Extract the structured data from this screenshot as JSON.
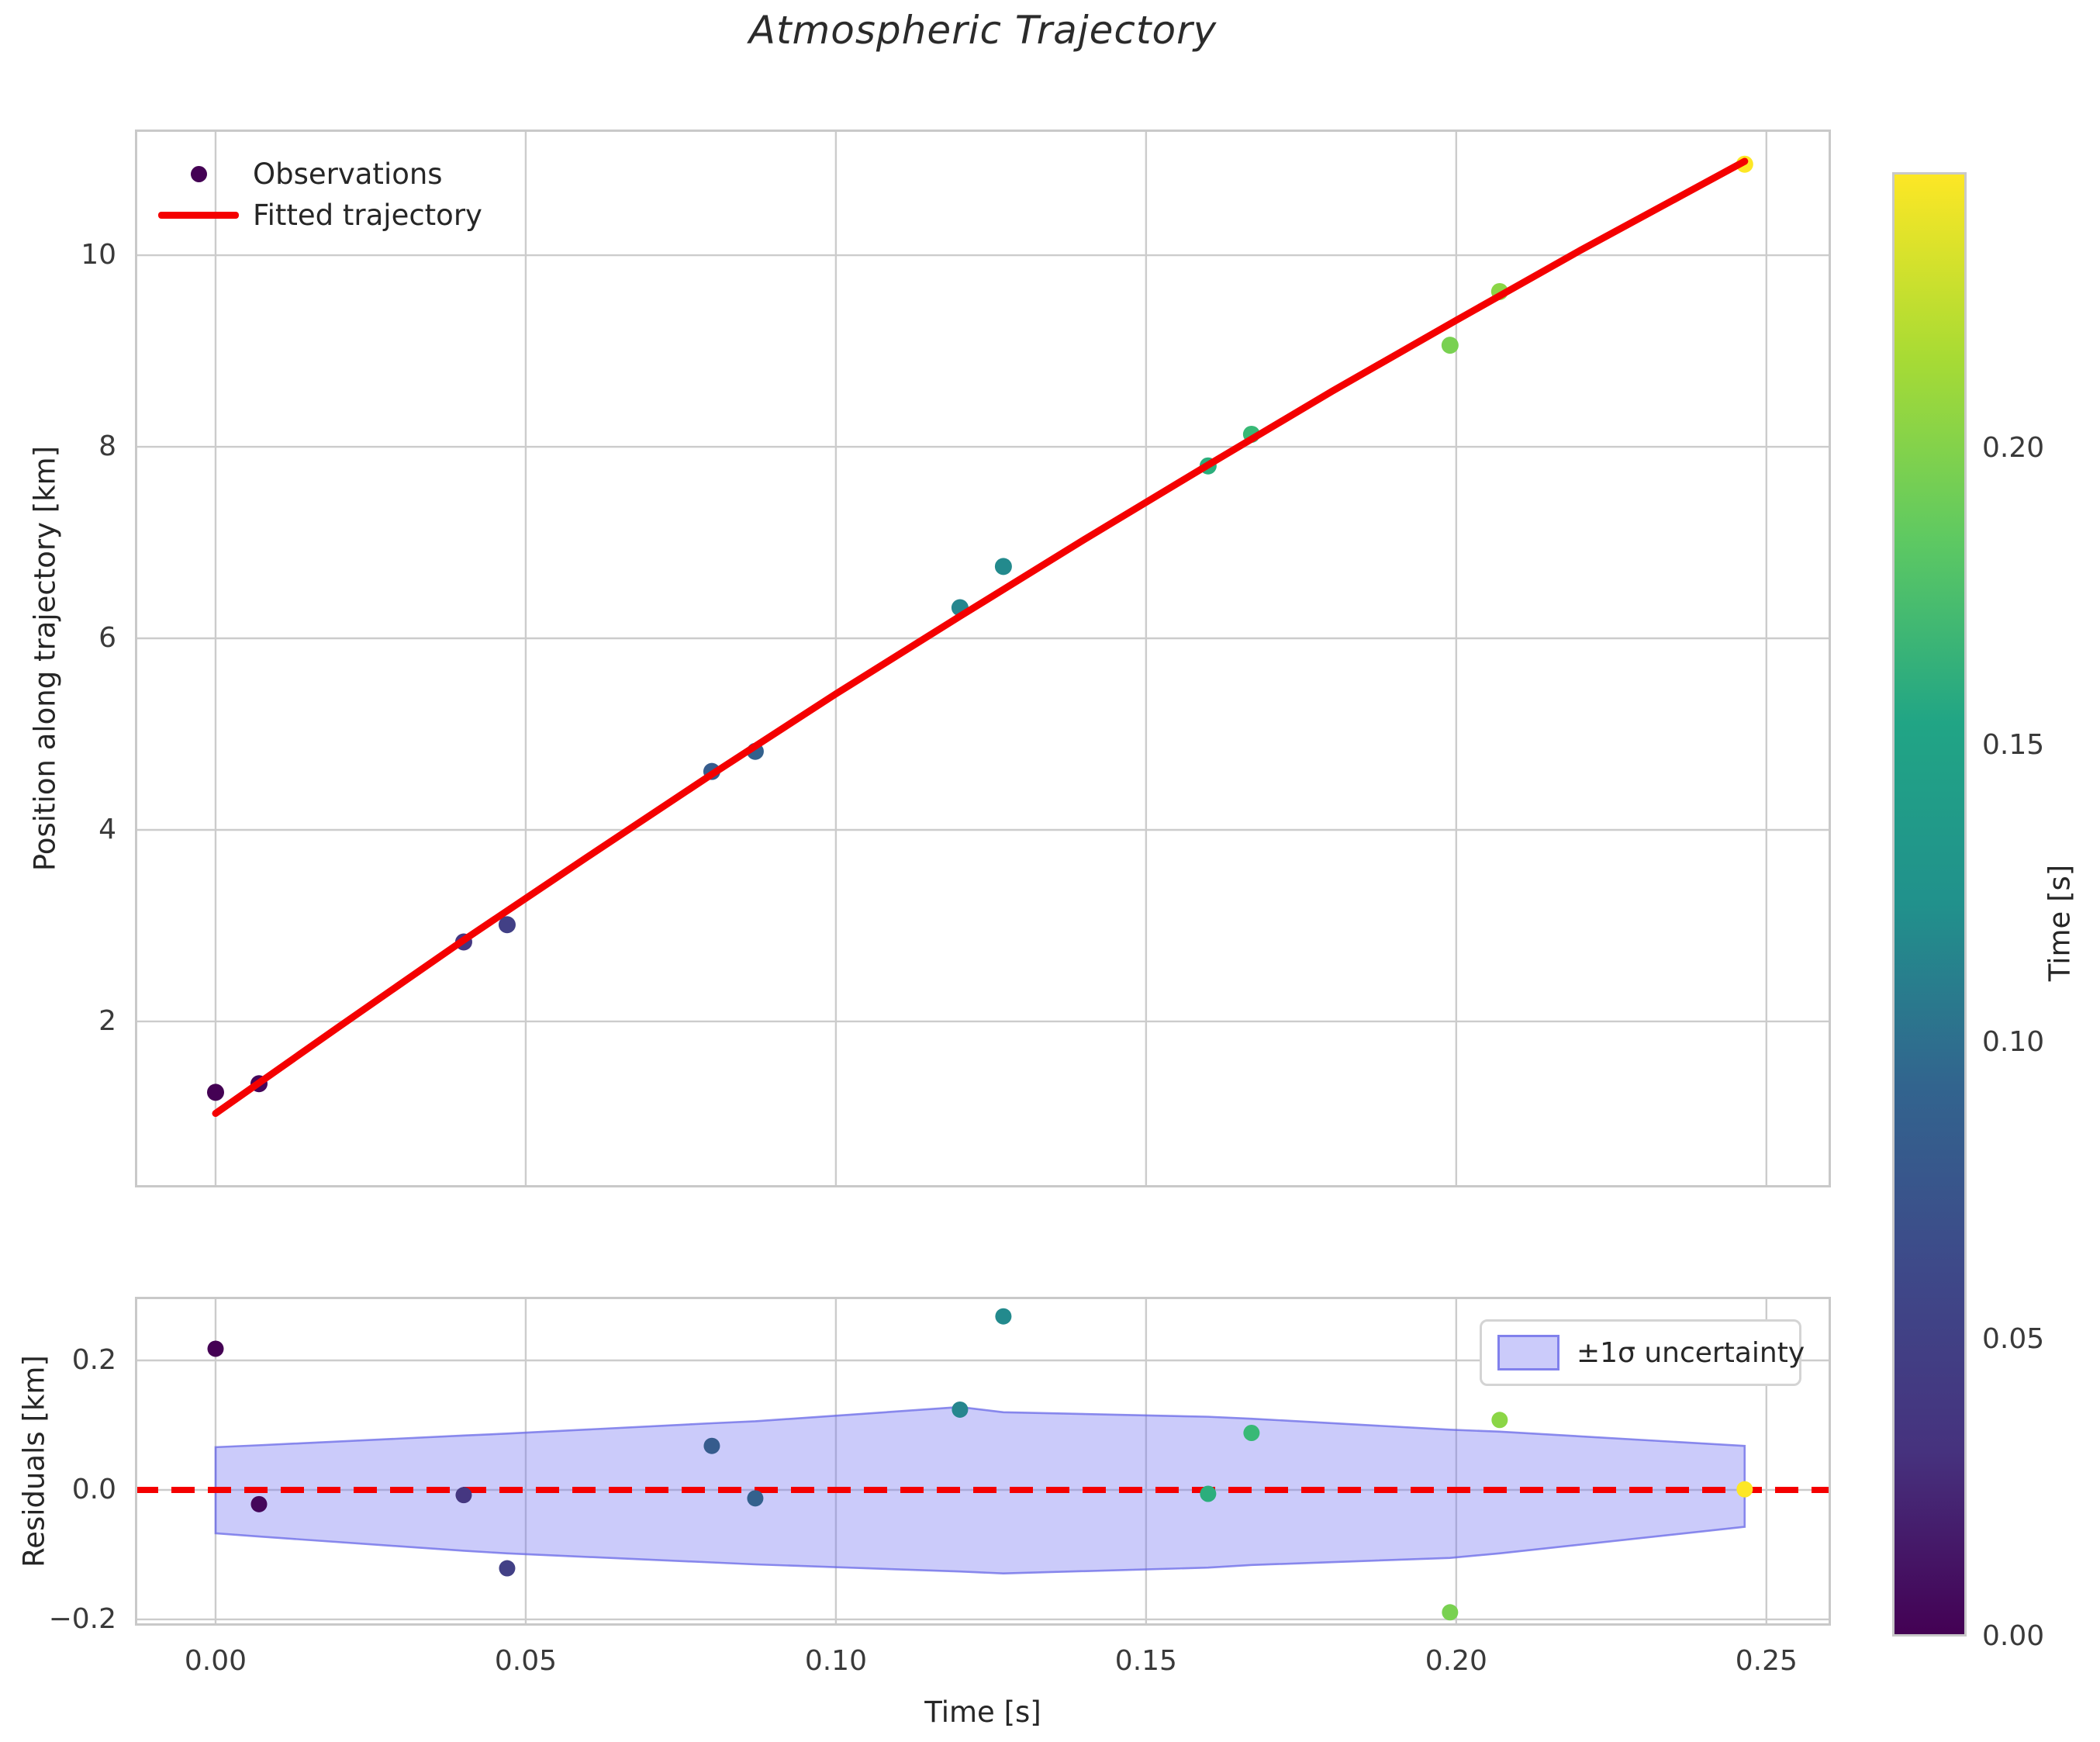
{
  "title": "Atmospheric Trajectory",
  "chart_data": [
    {
      "id": "trajectory",
      "type": "scatter",
      "title": "Atmospheric Trajectory",
      "xlabel": "Time [s]",
      "ylabel": "Position along trajectory [km]",
      "xlim": [
        -0.013,
        0.2604
      ],
      "ylim": [
        0.267,
        11.312
      ],
      "grid": true,
      "x_ticks": {
        "values": [
          0.0,
          0.05,
          0.1,
          0.15,
          0.2,
          0.25
        ],
        "labels": [
          "0.00",
          "0.05",
          "0.10",
          "0.15",
          "0.20",
          "0.25"
        ]
      },
      "y_ticks": {
        "values": [
          2,
          4,
          6,
          8,
          10
        ],
        "labels": [
          "2",
          "4",
          "6",
          "8",
          "10"
        ]
      },
      "legend": {
        "position": "upper left",
        "entries": [
          {
            "label": "Observations",
            "type": "point",
            "color": "#440154"
          },
          {
            "label": "Fitted trajectory",
            "type": "line",
            "color": "#f40000"
          }
        ]
      },
      "observations": {
        "name": "Observations",
        "colormap": "viridis",
        "color_by": "Time [s]",
        "marker_radius": 11,
        "points": [
          [
            0.0,
            1.26,
            "#440154"
          ],
          [
            0.007,
            1.35,
            "#45065a"
          ],
          [
            0.04,
            2.83,
            "#453781"
          ],
          [
            0.047,
            3.01,
            "#424086"
          ],
          [
            0.08,
            4.61,
            "#365c8d"
          ],
          [
            0.087,
            4.82,
            "#33618d"
          ],
          [
            0.12,
            6.32,
            "#26868e"
          ],
          [
            0.127,
            6.75,
            "#238a8d"
          ],
          [
            0.16,
            7.8,
            "#2bae7c"
          ],
          [
            0.167,
            8.13,
            "#38b976"
          ],
          [
            0.199,
            9.06,
            "#79d151"
          ],
          [
            0.207,
            9.62,
            "#8bd646"
          ],
          [
            0.2465,
            10.95,
            "#fde725"
          ]
        ]
      },
      "fitted_trajectory": {
        "name": "Fitted trajectory",
        "color": "#f40000",
        "width": 9,
        "x": [
          0,
          0.02,
          0.04,
          0.06,
          0.08,
          0.1,
          0.12,
          0.14,
          0.16,
          0.18,
          0.2,
          0.22,
          0.2465
        ],
        "y": [
          1.04,
          1.95,
          2.85,
          3.72,
          4.58,
          5.42,
          6.23,
          7.03,
          7.81,
          8.58,
          9.32,
          10.05,
          10.98
        ]
      }
    },
    {
      "id": "residuals",
      "type": "scatter",
      "xlabel": "Time [s]",
      "ylabel": "Residuals [km]",
      "xlim": [
        -0.013,
        0.2604
      ],
      "ylim": [
        -0.2096,
        0.2982
      ],
      "grid": true,
      "x_ticks": {
        "values": [
          0.0,
          0.05,
          0.1,
          0.15,
          0.2,
          0.25
        ],
        "labels": [
          "0.00",
          "0.05",
          "0.10",
          "0.15",
          "0.20",
          "0.25"
        ]
      },
      "y_ticks": {
        "values": [
          -0.2,
          0.0,
          0.2
        ],
        "labels": [
          "−0.2",
          "0.0",
          "0.2"
        ]
      },
      "zero_line": {
        "color": "#f40000",
        "style": "dashed",
        "width": 8,
        "dash": "30 17",
        "y": 0.0
      },
      "band": {
        "label": "±1σ uncertainty",
        "fill": "#6b6bf0",
        "fill_opacity": 0.35,
        "edge": "#6464e6",
        "edge_opacity": 0.72,
        "points": [
          [
            0.0,
            -0.067,
            0.066
          ],
          [
            0.007,
            -0.072,
            0.069
          ],
          [
            0.04,
            -0.094,
            0.084
          ],
          [
            0.047,
            -0.098,
            0.087
          ],
          [
            0.08,
            -0.112,
            0.103
          ],
          [
            0.087,
            -0.115,
            0.106
          ],
          [
            0.12,
            -0.126,
            0.128
          ],
          [
            0.127,
            -0.129,
            0.12
          ],
          [
            0.16,
            -0.12,
            0.113
          ],
          [
            0.167,
            -0.116,
            0.11
          ],
          [
            0.199,
            -0.105,
            0.093
          ],
          [
            0.207,
            -0.098,
            0.09
          ],
          [
            0.2465,
            -0.057,
            0.068
          ]
        ]
      },
      "points": [
        [
          0.0,
          0.218,
          "#440154"
        ],
        [
          0.007,
          -0.022,
          "#45065a"
        ],
        [
          0.04,
          -0.008,
          "#453781"
        ],
        [
          0.047,
          -0.121,
          "#424086"
        ],
        [
          0.08,
          0.068,
          "#365c8d"
        ],
        [
          0.087,
          -0.013,
          "#33618d"
        ],
        [
          0.12,
          0.124,
          "#26868e"
        ],
        [
          0.127,
          0.268,
          "#238a8d"
        ],
        [
          0.16,
          -0.006,
          "#2bae7c"
        ],
        [
          0.167,
          0.088,
          "#38b976"
        ],
        [
          0.199,
          -0.189,
          "#79d151"
        ],
        [
          0.207,
          0.108,
          "#8bd646"
        ],
        [
          0.2465,
          0.001,
          "#fde725"
        ]
      ],
      "legend": {
        "position": "upper right",
        "entries": [
          {
            "label": "±1σ uncertainty",
            "type": "patch"
          }
        ]
      }
    }
  ],
  "colorbar": {
    "label": "Time [s]",
    "vmin": 0.0,
    "vmax": 0.2465,
    "ticks": {
      "values": [
        0.0,
        0.05,
        0.1,
        0.15,
        0.2
      ],
      "labels": [
        "0.00",
        "0.05",
        "0.10",
        "0.15",
        "0.20"
      ]
    },
    "gradient": [
      [
        "0%",
        "#440154"
      ],
      [
        "12.5%",
        "#46327e"
      ],
      [
        "25%",
        "#3e4989"
      ],
      [
        "37.5%",
        "#32648e"
      ],
      [
        "50%",
        "#21918c"
      ],
      [
        "62.5%",
        "#21a585"
      ],
      [
        "75%",
        "#5ec962"
      ],
      [
        "87.5%",
        "#a8db34"
      ],
      [
        "100%",
        "#fde725"
      ]
    ],
    "grid_color": "#cccccc",
    "spine_color": "#c9c9c9"
  }
}
